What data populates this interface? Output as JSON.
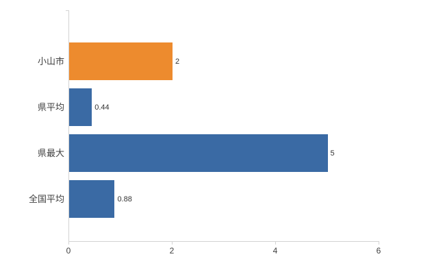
{
  "chart_data": {
    "type": "bar",
    "orientation": "horizontal",
    "title": "",
    "xlabel": "",
    "ylabel": "",
    "categories": [
      "小山市",
      "県平均",
      "県最大",
      "全国平均"
    ],
    "values": [
      2,
      0.44,
      5,
      0.88
    ],
    "value_labels": [
      "2",
      "0.44",
      "5",
      "0.88"
    ],
    "bar_colors": [
      "#ed8b2e",
      "#3a6aa4",
      "#3a6aa4",
      "#3a6aa4"
    ],
    "xlim": [
      0,
      6
    ],
    "x_ticks": [
      0,
      2,
      4,
      6
    ],
    "x_tick_labels": [
      "0",
      "2",
      "4",
      "6"
    ],
    "grid": false,
    "legend": "none",
    "axis_color": "#d3d3d3",
    "label_color": "#404040"
  }
}
